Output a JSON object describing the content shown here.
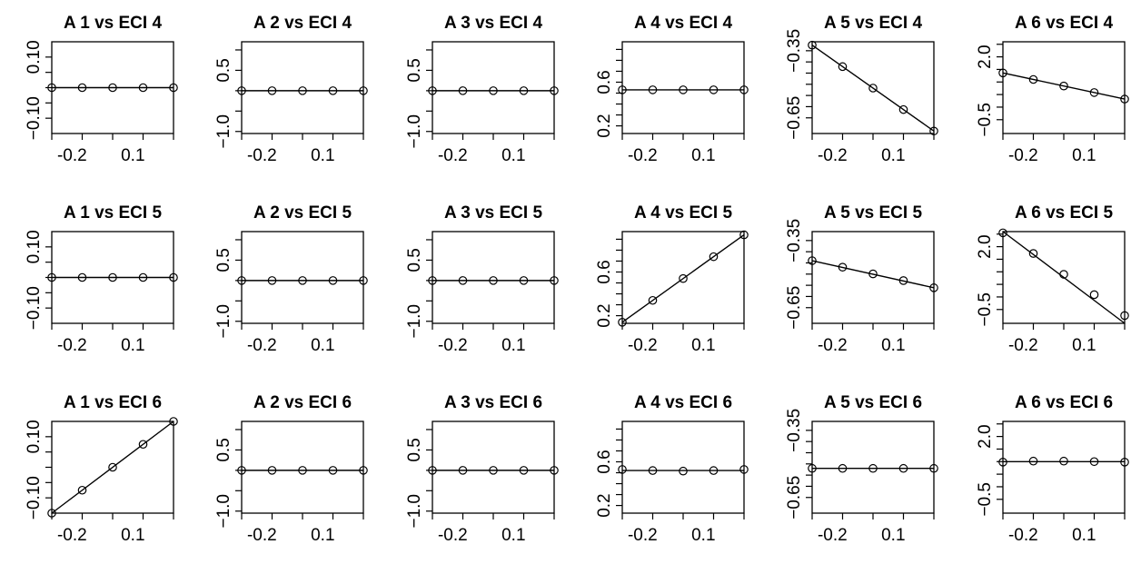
{
  "chart_data": {
    "type": "scatter",
    "layout": "3x6 grid",
    "shared_x": {
      "values": [
        -0.3,
        -0.15,
        0.0,
        0.15,
        0.3
      ],
      "ticks": [
        -0.2,
        0.1
      ],
      "tick_labels": [
        "-0.2",
        "0.1"
      ],
      "range": [
        -0.3,
        0.3
      ]
    },
    "column_axes": [
      {
        "range": [
          -0.15,
          0.15
        ],
        "ticks": [
          -0.1,
          0.1
        ],
        "tick_labels": [
          "−0.10",
          "0.10"
        ],
        "minor_ticks": [
          -0.1,
          -0.05,
          0.0,
          0.05,
          0.1
        ]
      },
      {
        "range": [
          -1.05,
          1.2
        ],
        "ticks": [
          -1.0,
          0.5
        ],
        "tick_labels": [
          "−1.0",
          "0.5"
        ],
        "minor_ticks": [
          -1.0,
          -0.5,
          0.0,
          0.5,
          1.0
        ]
      },
      {
        "range": [
          -1.05,
          1.2
        ],
        "ticks": [
          -1.0,
          0.5
        ],
        "tick_labels": [
          "−1.0",
          "0.5"
        ],
        "minor_ticks": [
          -1.0,
          -0.5,
          0.0,
          0.5,
          1.0
        ]
      },
      {
        "range": [
          0.13,
          0.97
        ],
        "ticks": [
          0.2,
          0.6
        ],
        "tick_labels": [
          "0.2",
          "0.6"
        ],
        "minor_ticks": [
          0.2,
          0.3,
          0.4,
          0.5,
          0.6,
          0.7,
          0.8,
          0.9
        ]
      },
      {
        "range": [
          -0.72,
          -0.31
        ],
        "ticks": [
          -0.65,
          -0.35
        ],
        "tick_labels": [
          "−0.65",
          "−0.35"
        ],
        "minor_ticks": [
          -0.65,
          -0.6,
          -0.55,
          -0.5,
          -0.45,
          -0.4,
          -0.35
        ]
      },
      {
        "range": [
          -1.05,
          2.6
        ],
        "ticks": [
          -0.5,
          2.0
        ],
        "tick_labels": [
          "−0.5",
          "2.0"
        ],
        "minor_ticks": [
          -0.5,
          0.0,
          0.5,
          1.0,
          1.5,
          2.0,
          2.5
        ]
      }
    ],
    "panels": [
      {
        "title": "A 1 vs ECI 4",
        "y": [
          0.0,
          0.0,
          0.0,
          0.0,
          0.0
        ],
        "line": [
          0.0,
          0.0
        ]
      },
      {
        "title": "A 2 vs ECI 4",
        "y": [
          0.0,
          0.0,
          0.0,
          0.0,
          0.0
        ],
        "line": [
          0.0,
          0.0
        ]
      },
      {
        "title": "A 3 vs ECI 4",
        "y": [
          0.0,
          0.0,
          0.0,
          0.0,
          0.0
        ],
        "line": [
          0.0,
          0.0
        ]
      },
      {
        "title": "A 4 vs ECI 4",
        "y": [
          0.53,
          0.53,
          0.53,
          0.53,
          0.53
        ],
        "line": [
          0.53,
          0.53
        ]
      },
      {
        "title": "A 5 vs ECI 4",
        "y": [
          -0.325,
          -0.421,
          -0.517,
          -0.613,
          -0.709
        ],
        "line": [
          -0.325,
          -0.709
        ]
      },
      {
        "title": "A 6 vs ECI 4",
        "y": [
          1.36,
          1.1,
          0.84,
          0.58,
          0.32
        ],
        "line": [
          1.36,
          0.32
        ]
      },
      {
        "title": "A 1 vs ECI 5",
        "y": [
          0.0,
          0.0,
          0.0,
          0.0,
          0.0
        ],
        "line": [
          0.0,
          0.0
        ]
      },
      {
        "title": "A 2 vs ECI 5",
        "y": [
          0.0,
          0.0,
          0.0,
          0.0,
          0.0
        ],
        "line": [
          0.0,
          0.0
        ]
      },
      {
        "title": "A 3 vs ECI 5",
        "y": [
          0.0,
          0.0,
          0.0,
          0.0,
          0.0
        ],
        "line": [
          0.0,
          0.0
        ]
      },
      {
        "title": "A 4 vs ECI 5",
        "y": [
          0.14,
          0.34,
          0.54,
          0.74,
          0.94
        ],
        "line": [
          0.14,
          0.94
        ]
      },
      {
        "title": "A 5 vs ECI 5",
        "y": [
          -0.44,
          -0.469,
          -0.499,
          -0.529,
          -0.561
        ],
        "line": [
          -0.44,
          -0.561
        ]
      },
      {
        "title": "A 6 vs ECI 5",
        "y": [
          2.55,
          1.73,
          0.9,
          0.09,
          -0.74
        ],
        "line": [
          2.6,
          -1.05
        ]
      },
      {
        "title": "A 1 vs ECI 6",
        "y": [
          -0.15,
          -0.075,
          0.0,
          0.075,
          0.15
        ],
        "line": [
          -0.15,
          0.15
        ]
      },
      {
        "title": "A 2 vs ECI 6",
        "y": [
          0.0,
          0.0,
          0.0,
          0.0,
          0.0
        ],
        "line": [
          0.0,
          0.0
        ]
      },
      {
        "title": "A 3 vs ECI 6",
        "y": [
          0.0,
          0.0,
          0.0,
          0.0,
          0.0
        ],
        "line": [
          0.0,
          0.0
        ]
      },
      {
        "title": "A 4 vs ECI 6",
        "y": [
          0.53,
          0.52,
          0.515,
          0.52,
          0.53
        ],
        "line": [
          0.52,
          0.52
        ]
      },
      {
        "title": "A 5 vs ECI 6",
        "y": [
          -0.52,
          -0.52,
          -0.52,
          -0.52,
          -0.52
        ],
        "line": [
          -0.52,
          -0.52
        ]
      },
      {
        "title": "A 6 vs ECI 6",
        "y": [
          0.98,
          1.02,
          1.02,
          1.0,
          0.98
        ],
        "line": [
          1.0,
          1.0
        ]
      }
    ]
  }
}
